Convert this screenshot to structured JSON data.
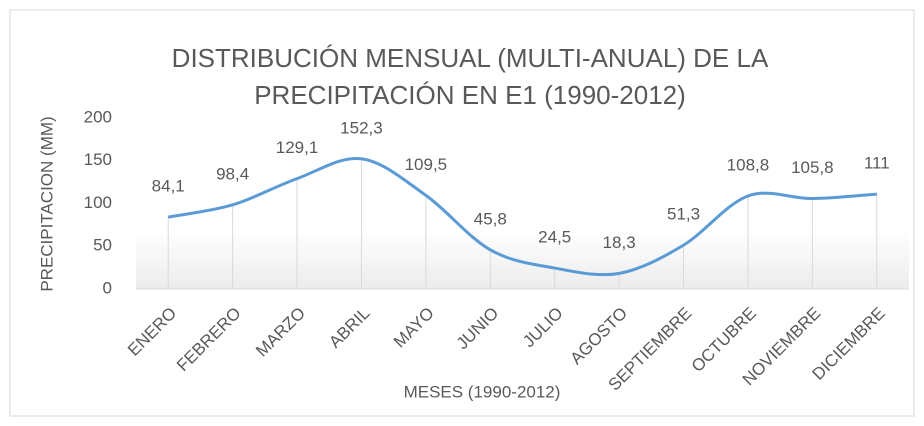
{
  "chart_data": {
    "type": "line",
    "title": "DISTRIBUCIÓN MENSUAL (MULTI-ANUAL) DE LA PRECIPITACIÓN EN E1 (1990-2012)",
    "xlabel": "MESES (1990-2012)",
    "ylabel": "PRECIPITACION (MM)",
    "categories": [
      "ENERO",
      "FEBRERO",
      "MARZO",
      "ABRIL",
      "MAYO",
      "JUNIO",
      "JULIO",
      "AGOSTO",
      "SEPTIEMBRE",
      "OCTUBRE",
      "NOVIEMBRE",
      "DICIEMBRE"
    ],
    "values": [
      84.1,
      98.4,
      129.1,
      152.3,
      109.5,
      45.8,
      24.5,
      18.3,
      51.3,
      108.8,
      105.8,
      111
    ],
    "value_labels": [
      "84,1",
      "98,4",
      "129,1",
      "152,3",
      "109,5",
      "45,8",
      "24,5",
      "18,3",
      "51,3",
      "108,8",
      "105,8",
      "111"
    ],
    "color": "#5b9bd5",
    "ylim": [
      0,
      200
    ],
    "yticks": [
      0,
      50,
      100,
      150,
      200
    ],
    "drop_lines": true
  }
}
